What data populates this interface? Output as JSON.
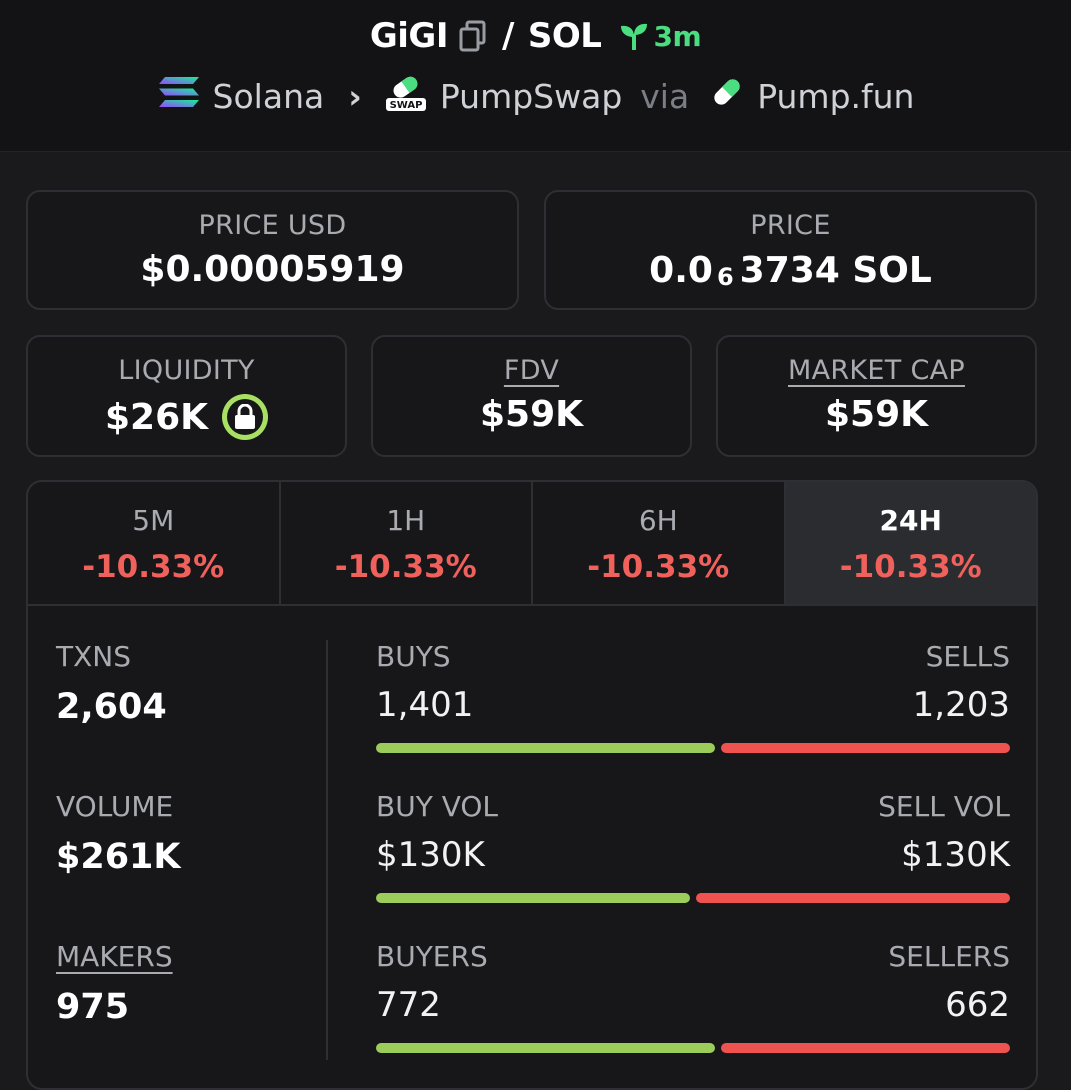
{
  "header": {
    "token": "GiGI",
    "slash": "/",
    "quote": "SOL",
    "age": "3m",
    "chain": "Solana",
    "dex": "PumpSwap",
    "via": "via",
    "launchpad": "Pump.fun",
    "dex_icon_text": "SWAP",
    "accent_color": "#4ade80"
  },
  "price_usd": {
    "label": "PRICE USD",
    "value": "$0.00005919"
  },
  "price": {
    "label": "PRICE",
    "prefix": "0.0",
    "zeros": "6",
    "suffix": "3734 SOL"
  },
  "liquidity": {
    "label": "LIQUIDITY",
    "value": "$26K",
    "icon": "lock-icon"
  },
  "fdv": {
    "label": "FDV",
    "value": "$59K"
  },
  "market_cap": {
    "label": "MARKET CAP",
    "value": "$59K"
  },
  "tabs": [
    {
      "label": "5M",
      "change": "-10.33%"
    },
    {
      "label": "1H",
      "change": "-10.33%"
    },
    {
      "label": "6H",
      "change": "-10.33%"
    },
    {
      "label": "24H",
      "change": "-10.33%"
    }
  ],
  "stats": {
    "txns": {
      "label": "TXNS",
      "value": "2,604"
    },
    "volume": {
      "label": "VOLUME",
      "value": "$261K"
    },
    "makers": {
      "label": "MAKERS",
      "value": "975"
    },
    "buys": {
      "left_label": "BUYS",
      "right_label": "SELLS",
      "left_value": "1,401",
      "right_value": "1,203",
      "buy_share": 0.54
    },
    "vol": {
      "left_label": "BUY VOL",
      "right_label": "SELL VOL",
      "left_value": "$130K",
      "right_value": "$130K",
      "buy_share": 0.5
    },
    "buyers": {
      "left_label": "BUYERS",
      "right_label": "SELLERS",
      "left_value": "772",
      "right_value": "662",
      "buy_share": 0.54
    }
  },
  "colors": {
    "negative": "#f0615c",
    "buy_bar": "#9ccc5a",
    "sell_bar": "#ef5350"
  }
}
